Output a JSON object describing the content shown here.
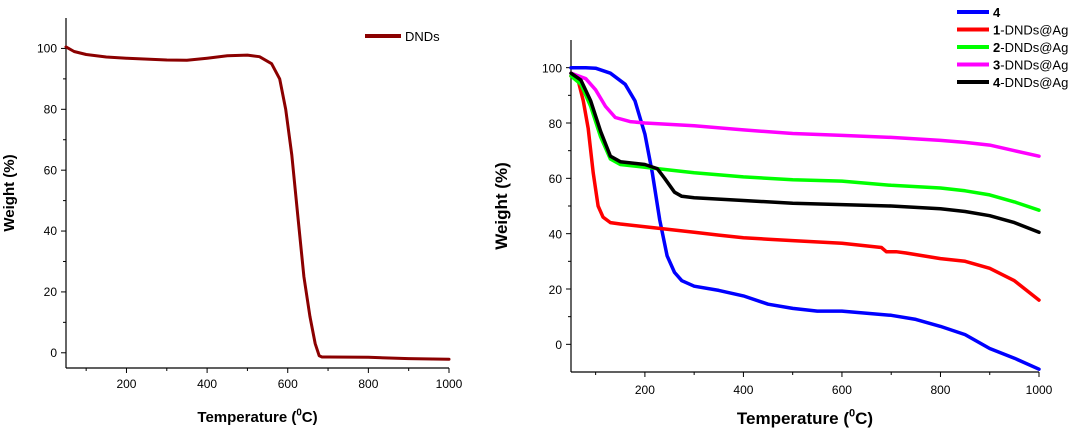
{
  "chart_data": [
    {
      "type": "line",
      "xlabel": "Temperature (",
      "xlabel_sup": "0",
      "xlabel_end": "C)",
      "ylabel": "Weight (%)",
      "xlim": [
        50,
        1000
      ],
      "ylim": [
        -5,
        110
      ],
      "xticks": [
        200,
        400,
        600,
        800,
        1000
      ],
      "yticks": [
        0,
        20,
        40,
        60,
        80,
        100
      ],
      "series": [
        {
          "name": "DNDs",
          "color": "#8b0000",
          "points": [
            [
              50,
              100.5
            ],
            [
              70,
              99
            ],
            [
              100,
              98
            ],
            [
              150,
              97.2
            ],
            [
              200,
              96.8
            ],
            [
              300,
              96.2
            ],
            [
              350,
              96.1
            ],
            [
              400,
              96.8
            ],
            [
              450,
              97.6
            ],
            [
              500,
              97.8
            ],
            [
              530,
              97.3
            ],
            [
              560,
              95
            ],
            [
              580,
              90
            ],
            [
              595,
              80
            ],
            [
              610,
              65
            ],
            [
              625,
              45
            ],
            [
              640,
              25
            ],
            [
              655,
              12
            ],
            [
              668,
              3
            ],
            [
              678,
              -1
            ],
            [
              685,
              -1.4
            ],
            [
              700,
              -1.4
            ],
            [
              800,
              -1.5
            ],
            [
              900,
              -1.9
            ],
            [
              1000,
              -2.1
            ]
          ]
        }
      ]
    },
    {
      "type": "line",
      "xlabel": "Temperature (",
      "xlabel_sup": "0",
      "xlabel_end": "C)",
      "ylabel": "Weight (%)",
      "xlim": [
        50,
        1000
      ],
      "ylim": [
        -10,
        110
      ],
      "xticks": [
        200,
        400,
        600,
        800,
        1000
      ],
      "yticks": [
        0,
        20,
        40,
        60,
        80,
        100
      ],
      "series": [
        {
          "name_bold": "4",
          "name_rest": "",
          "color": "#0000ff",
          "points": [
            [
              50,
              100
            ],
            [
              80,
              100
            ],
            [
              100,
              99.8
            ],
            [
              130,
              98
            ],
            [
              160,
              94
            ],
            [
              180,
              88
            ],
            [
              200,
              76
            ],
            [
              215,
              62
            ],
            [
              230,
              45
            ],
            [
              245,
              32
            ],
            [
              260,
              26
            ],
            [
              275,
              23
            ],
            [
              300,
              21
            ],
            [
              350,
              19.5
            ],
            [
              400,
              17.5
            ],
            [
              450,
              14.5
            ],
            [
              500,
              13
            ],
            [
              550,
              12
            ],
            [
              600,
              12
            ],
            [
              700,
              10.5
            ],
            [
              750,
              9
            ],
            [
              800,
              6.5
            ],
            [
              850,
              3.5
            ],
            [
              900,
              -1.5
            ],
            [
              950,
              -5
            ],
            [
              1000,
              -9
            ]
          ]
        },
        {
          "name_bold": "1",
          "name_rest": "-DNDs@Ag",
          "color": "#ff0000",
          "points": [
            [
              50,
              97
            ],
            [
              65,
              95
            ],
            [
              75,
              88
            ],
            [
              85,
              78
            ],
            [
              95,
              62
            ],
            [
              105,
              50
            ],
            [
              115,
              46
            ],
            [
              130,
              44
            ],
            [
              150,
              43.5
            ],
            [
              200,
              42.5
            ],
            [
              250,
              41.5
            ],
            [
              300,
              40.5
            ],
            [
              350,
              39.5
            ],
            [
              400,
              38.5
            ],
            [
              450,
              38
            ],
            [
              500,
              37.5
            ],
            [
              600,
              36.5
            ],
            [
              680,
              35
            ],
            [
              690,
              33.5
            ],
            [
              710,
              33.5
            ],
            [
              730,
              33
            ],
            [
              800,
              31
            ],
            [
              850,
              30
            ],
            [
              900,
              27.5
            ],
            [
              950,
              23
            ],
            [
              1000,
              16
            ]
          ]
        },
        {
          "name_bold": "2",
          "name_rest": "-DNDs@Ag",
          "color": "#00ff00",
          "points": [
            [
              50,
              97
            ],
            [
              70,
              94
            ],
            [
              90,
              86
            ],
            [
              110,
              75
            ],
            [
              130,
              67
            ],
            [
              150,
              65
            ],
            [
              200,
              64
            ],
            [
              250,
              63
            ],
            [
              300,
              62
            ],
            [
              400,
              60.5
            ],
            [
              500,
              59.5
            ],
            [
              600,
              59
            ],
            [
              700,
              57.5
            ],
            [
              800,
              56.5
            ],
            [
              850,
              55.5
            ],
            [
              900,
              54
            ],
            [
              950,
              51.5
            ],
            [
              1000,
              48.5
            ]
          ]
        },
        {
          "name_bold": "3",
          "name_rest": "-DNDs@Ag",
          "color": "#ff00ff",
          "points": [
            [
              50,
              98
            ],
            [
              80,
              96
            ],
            [
              100,
              92
            ],
            [
              120,
              86
            ],
            [
              140,
              82
            ],
            [
              170,
              80.5
            ],
            [
              200,
              80
            ],
            [
              300,
              79
            ],
            [
              400,
              77.5
            ],
            [
              500,
              76.2
            ],
            [
              600,
              75.5
            ],
            [
              700,
              74.8
            ],
            [
              800,
              73.7
            ],
            [
              850,
              73
            ],
            [
              900,
              72
            ],
            [
              950,
              70
            ],
            [
              1000,
              68
            ]
          ]
        },
        {
          "name_bold": "4",
          "name_rest": "-DNDs@Ag",
          "color": "#000000",
          "points": [
            [
              50,
              98
            ],
            [
              70,
              95.5
            ],
            [
              90,
              88
            ],
            [
              110,
              77
            ],
            [
              130,
              68
            ],
            [
              150,
              66
            ],
            [
              200,
              65
            ],
            [
              225,
              63.5
            ],
            [
              240,
              60
            ],
            [
              260,
              55
            ],
            [
              275,
              53.5
            ],
            [
              300,
              53
            ],
            [
              400,
              52
            ],
            [
              500,
              51
            ],
            [
              600,
              50.5
            ],
            [
              700,
              50
            ],
            [
              800,
              49
            ],
            [
              850,
              48
            ],
            [
              900,
              46.5
            ],
            [
              950,
              44
            ],
            [
              1000,
              40.5
            ]
          ]
        }
      ]
    }
  ]
}
